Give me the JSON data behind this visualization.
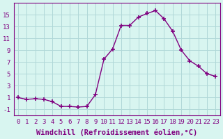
{
  "x": [
    0,
    1,
    2,
    3,
    4,
    5,
    6,
    7,
    8,
    9,
    10,
    11,
    12,
    13,
    14,
    15,
    16,
    17,
    18,
    19,
    20,
    21,
    22,
    23
  ],
  "y": [
    1.0,
    0.7,
    0.8,
    0.7,
    0.3,
    -0.5,
    -0.5,
    -0.6,
    -0.5,
    1.5,
    7.5,
    9.2,
    13.2,
    13.2,
    14.6,
    15.2,
    15.7,
    14.3,
    12.2,
    9.0,
    7.2,
    6.3,
    5.0,
    4.6
  ],
  "line_color": "#800080",
  "marker": "+",
  "marker_size": 5,
  "marker_linewidth": 1.2,
  "background_color": "#d8f5f0",
  "grid_color": "#b0d8d8",
  "xlabel": "Windchill (Refroidissement éolien,°C)",
  "yticks": [
    -1,
    1,
    3,
    5,
    7,
    9,
    11,
    13,
    15
  ],
  "ylim": [
    -2,
    17
  ],
  "xlim": [
    -0.5,
    23.5
  ],
  "xlabel_fontsize": 7.5,
  "tick_fontsize": 6.5,
  "label_color": "#800080",
  "spine_color": "#800080"
}
